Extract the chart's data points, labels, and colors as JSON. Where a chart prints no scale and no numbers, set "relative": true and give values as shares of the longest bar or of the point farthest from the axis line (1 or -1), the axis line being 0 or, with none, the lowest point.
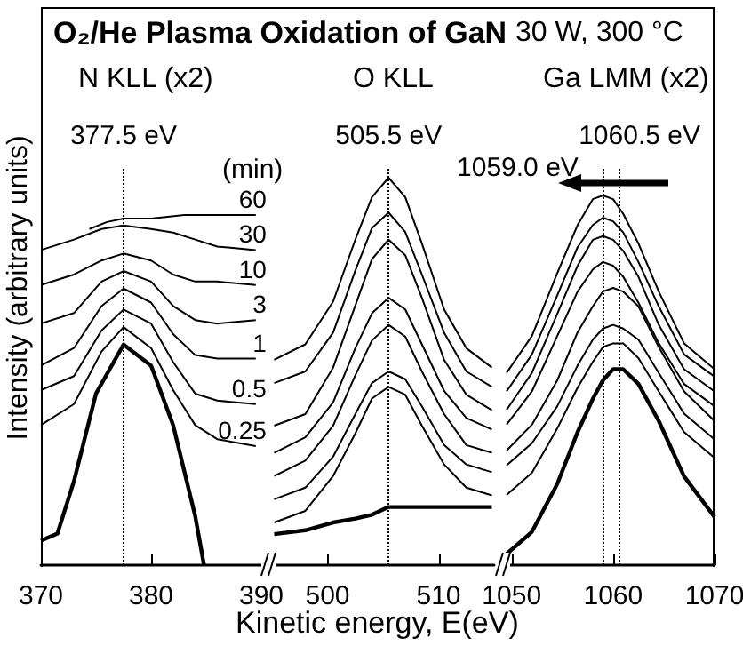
{
  "chart_data": [
    {
      "type": "line",
      "relative": true,
      "title": "O₂/He Plasma Oxidation of GaN",
      "ylabel": "Intensity (arbitrary units)",
      "legend_title": "(min)",
      "annotations": [
        "N KLL (x2)"
      ],
      "tick_labels": "x",
      "marker": "none",
      "line_style": "solid",
      "xlim": [
        370,
        390
      ],
      "xticks": [
        370,
        380,
        390
      ],
      "x": [
        370,
        373,
        375.5,
        377.5,
        380,
        382,
        384,
        386,
        389.5
      ],
      "ref_lines": [
        {
          "axis": "x",
          "value": 377.5,
          "label": "377.5 eV"
        }
      ],
      "series": [
        {
          "name": "60",
          "color": "#000000",
          "x": [
            374.4,
            376,
            377.5,
            380,
            383,
            386,
            389.5
          ],
          "values": [
            0.96,
            0.98,
            0.99,
            0.99,
            1,
            1,
            1
          ]
        },
        {
          "name": "30",
          "color": "#000000",
          "values": [
            0.9,
            0.93,
            0.96,
            0.97,
            0.96,
            0.95,
            0.93,
            0.91,
            0.9
          ]
        },
        {
          "name": "10",
          "color": "#000000",
          "values": [
            0.8,
            0.83,
            0.87,
            0.89,
            0.87,
            0.83,
            0.81,
            0.81,
            0.8
          ]
        },
        {
          "name": "3",
          "color": "#000000",
          "values": [
            0.69,
            0.72,
            0.81,
            0.84,
            0.81,
            0.74,
            0.7,
            0.69,
            0.7
          ]
        },
        {
          "name": "1",
          "color": "#000000",
          "values": [
            0.57,
            0.62,
            0.74,
            0.79,
            0.75,
            0.66,
            0.6,
            0.59,
            0.59
          ]
        },
        {
          "name": "0.5",
          "color": "#000000",
          "values": [
            0.5,
            0.54,
            0.67,
            0.73,
            0.69,
            0.58,
            0.49,
            0.47,
            0.46
          ]
        },
        {
          "name": "0.25",
          "color": "#000000",
          "values": [
            0.4,
            0.46,
            0.61,
            0.68,
            0.62,
            0.5,
            0.4,
            0.36,
            0.34
          ]
        },
        {
          "color": "#000000",
          "x": [
            370,
            371.5,
            373,
            375,
            377.5,
            380,
            382,
            384,
            384.8
          ],
          "values": [
            0.07,
            0.09,
            0.24,
            0.49,
            0.63,
            0.57,
            0.4,
            0.14,
            0
          ]
        }
      ]
    },
    {
      "type": "line",
      "relative": true,
      "xlabel": "Kinetic energy, E(eV)",
      "annotations": [
        "O KLL"
      ],
      "tick_labels": "x",
      "marker": "none",
      "line_style": "solid",
      "xlim": [
        495,
        515
      ],
      "xticks": [
        500,
        510
      ],
      "x": [
        495.2,
        498,
        500.5,
        502.5,
        504,
        505.5,
        507,
        508.5,
        510.5,
        512.5,
        514.8
      ],
      "ref_lines": [
        {
          "axis": "x",
          "value": 505.5,
          "label": "505.5 eV"
        }
      ],
      "series": [
        {
          "color": "#000000",
          "values": [
            0.53,
            0.57,
            0.68,
            0.84,
            0.95,
            1,
            0.95,
            0.83,
            0.66,
            0.56,
            0.51
          ]
        },
        {
          "color": "#000000",
          "values": [
            0.47,
            0.5,
            0.6,
            0.76,
            0.87,
            0.91,
            0.86,
            0.75,
            0.6,
            0.5,
            0.46
          ]
        },
        {
          "color": "#000000",
          "values": [
            0.36,
            0.39,
            0.51,
            0.67,
            0.79,
            0.84,
            0.8,
            0.69,
            0.53,
            0.44,
            0.4
          ]
        },
        {
          "color": "#000000",
          "values": [
            0.29,
            0.33,
            0.42,
            0.56,
            0.65,
            0.69,
            0.66,
            0.57,
            0.45,
            0.38,
            0.35
          ]
        },
        {
          "color": "#000000",
          "values": [
            0.23,
            0.27,
            0.36,
            0.49,
            0.58,
            0.62,
            0.59,
            0.5,
            0.39,
            0.31,
            0.29
          ]
        },
        {
          "color": "#000000",
          "values": [
            0.17,
            0.2,
            0.28,
            0.39,
            0.47,
            0.5,
            0.48,
            0.41,
            0.31,
            0.26,
            0.24
          ]
        },
        {
          "color": "#000000",
          "values": [
            0.11,
            0.14,
            0.23,
            0.34,
            0.43,
            0.46,
            0.44,
            0.36,
            0.26,
            0.2,
            0.18
          ]
        },
        {
          "color": "#000000",
          "x": [
            495.2,
            498,
            500.5,
            502.5,
            504,
            505.5,
            507,
            510,
            514.8
          ],
          "values": [
            0.08,
            0.09,
            0.11,
            0.12,
            0.13,
            0.15,
            0.15,
            0.15,
            0.15
          ]
        }
      ]
    },
    {
      "type": "line",
      "relative": true,
      "subtitle": "30 W, 300 °C",
      "annotations": [
        "Ga LMM (x2)"
      ],
      "tick_labels": "x",
      "marker": "none",
      "line_style": "solid",
      "xlim": [
        1049.5,
        1070
      ],
      "xticks": [
        1050,
        1060,
        1070
      ],
      "x": [
        1049.5,
        1052,
        1054.5,
        1056.5,
        1058,
        1059,
        1060,
        1061,
        1062.5,
        1064.5,
        1067,
        1070
      ],
      "ref_lines": [
        {
          "axis": "x",
          "value": 1059.0,
          "label": "1059.0 eV"
        },
        {
          "axis": "x",
          "value": 1060.5,
          "label": "1060.5 eV"
        }
      ],
      "series": [
        {
          "color": "#000000",
          "values": [
            0.52,
            0.62,
            0.79,
            0.92,
            0.99,
            1.0,
            0.99,
            0.95,
            0.87,
            0.74,
            0.6,
            0.53
          ]
        },
        {
          "color": "#000000",
          "values": [
            0.47,
            0.57,
            0.73,
            0.86,
            0.92,
            0.94,
            0.93,
            0.9,
            0.82,
            0.7,
            0.57,
            0.51
          ]
        },
        {
          "color": "#000000",
          "values": [
            0.42,
            0.52,
            0.68,
            0.81,
            0.88,
            0.89,
            0.88,
            0.85,
            0.78,
            0.65,
            0.53,
            0.47
          ]
        },
        {
          "color": "#000000",
          "values": [
            0.38,
            0.47,
            0.62,
            0.74,
            0.8,
            0.82,
            0.81,
            0.78,
            0.71,
            0.6,
            0.49,
            0.43
          ]
        },
        {
          "color": "#000000",
          "values": [
            0.31,
            0.38,
            0.5,
            0.63,
            0.7,
            0.74,
            0.75,
            0.74,
            0.7,
            0.59,
            0.47,
            0.39
          ]
        },
        {
          "color": "#000000",
          "values": [
            0.27,
            0.33,
            0.43,
            0.54,
            0.61,
            0.64,
            0.65,
            0.64,
            0.61,
            0.52,
            0.41,
            0.34
          ]
        },
        {
          "color": "#000000",
          "values": [
            0.19,
            0.25,
            0.37,
            0.48,
            0.55,
            0.59,
            0.6,
            0.6,
            0.56,
            0.47,
            0.36,
            0.29
          ]
        },
        {
          "color": "#000000",
          "values": [
            0.03,
            0.09,
            0.22,
            0.36,
            0.45,
            0.5,
            0.53,
            0.53,
            0.49,
            0.39,
            0.24,
            0.13
          ]
        }
      ]
    }
  ]
}
